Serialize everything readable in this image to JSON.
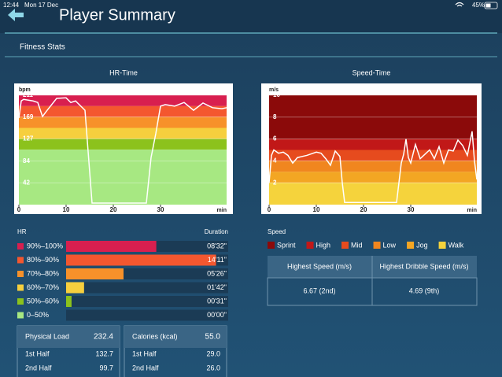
{
  "status_bar": {
    "time": "12:44",
    "date": "Mon 17 Dec",
    "battery": "45%"
  },
  "header": {
    "title": "Player Summary"
  },
  "section": "Fitness Stats",
  "hr_chart": {
    "type": "line",
    "title": "HR-Time",
    "y_unit": "bpm",
    "x_unit": "min",
    "color": "#ffffff",
    "x": [
      0,
      0.5,
      1,
      3,
      4,
      5,
      6,
      8,
      10,
      11,
      12,
      14,
      15.5,
      27,
      28,
      29,
      30,
      31,
      33,
      35,
      37,
      39,
      41,
      43,
      44
    ],
    "values": [
      167,
      200,
      203,
      200,
      197,
      170,
      182,
      205,
      206,
      197,
      200,
      182,
      3,
      3,
      91,
      137,
      190,
      193,
      190,
      197,
      182,
      196,
      187,
      185,
      187
    ],
    "xlim": [
      0,
      44
    ],
    "ylim": [
      0,
      211
    ],
    "xticks": [
      0,
      10,
      20,
      30
    ],
    "yticks": [
      42,
      84,
      127,
      169,
      211
    ],
    "bands": [
      {
        "from": 190,
        "to": 211,
        "color": "#d81f4f"
      },
      {
        "from": 169,
        "to": 190,
        "color": "#f4572f"
      },
      {
        "from": 148,
        "to": 169,
        "color": "#f7912a"
      },
      {
        "from": 127,
        "to": 148,
        "color": "#f6cf3e"
      },
      {
        "from": 106,
        "to": 127,
        "color": "#8cc21c"
      },
      {
        "from": 0,
        "to": 106,
        "color": "#a7e882"
      }
    ]
  },
  "speed_chart": {
    "type": "line",
    "title": "Speed-Time",
    "y_unit": "m/s",
    "x_unit": "min",
    "legend_title": "Speed",
    "color": "#ffffff",
    "x": [
      0,
      0.5,
      1,
      2,
      3,
      4,
      5,
      6,
      8,
      10,
      11,
      12,
      13,
      14,
      15,
      15.5,
      16,
      27,
      28,
      28.5,
      29,
      29.5,
      30,
      31,
      32,
      33,
      34,
      35,
      36,
      37,
      38,
      39,
      40,
      41,
      42,
      43,
      43.5,
      44
    ],
    "values": [
      2,
      4.5,
      5,
      4.7,
      4.8,
      4.5,
      3.8,
      4.3,
      4.5,
      4.8,
      4.7,
      4.2,
      3.6,
      4.9,
      4.4,
      2,
      0.2,
      0.2,
      3.8,
      4.6,
      6,
      4.3,
      3.8,
      5.5,
      4.2,
      4.6,
      5,
      4.2,
      5.3,
      3.8,
      5,
      4.9,
      5.9,
      5.4,
      4.5,
      6.7,
      4,
      2.3
    ],
    "xlim": [
      0,
      44
    ],
    "ylim": [
      0,
      10
    ],
    "xticks": [
      0,
      10,
      20,
      30
    ],
    "yticks": [
      2,
      4,
      6,
      8,
      10
    ],
    "bands": [
      {
        "name": "Sprint",
        "from": 6,
        "to": 10,
        "color": "#8b0a0a"
      },
      {
        "name": "High",
        "from": 5,
        "to": 6,
        "color": "#c11818"
      },
      {
        "name": "Mid",
        "from": 4,
        "to": 5,
        "color": "#e64b1e"
      },
      {
        "name": "Low",
        "from": 3,
        "to": 4,
        "color": "#f0861f"
      },
      {
        "name": "Jog",
        "from": 2,
        "to": 3,
        "color": "#f3a623"
      },
      {
        "name": "Walk",
        "from": 0,
        "to": 2,
        "color": "#f5d33c"
      }
    ]
  },
  "hr_zones": {
    "type": "bar",
    "title": "HR",
    "duration_label": "Duration",
    "xlim": [
      0,
      920
    ],
    "categories": [
      "90%–100%",
      "80%–90%",
      "70%–80%",
      "60%–70%",
      "50%–60%",
      "0–50%"
    ],
    "colors": [
      "#d81f4f",
      "#f4572f",
      "#f7912a",
      "#f6cf3e",
      "#8cc21c",
      "#a7e882"
    ],
    "values": [
      512,
      851,
      326,
      102,
      31,
      0
    ],
    "value_labels": [
      "08'32\"",
      "14'11\"",
      "05'26\"",
      "01'42\"",
      "00'31\"",
      "00'00\""
    ]
  },
  "speed_table": {
    "headers": [
      "Highest Speed (m/s)",
      "Highest Dribble Speed (m/s)"
    ],
    "rows": [
      [
        "6.67 (2nd)",
        "4.69 (9th)"
      ]
    ]
  },
  "load_boxes": [
    {
      "title": "Physical Load",
      "total": "232.4",
      "rows": [
        [
          "1st Half",
          "132.7"
        ],
        [
          "2nd Half",
          "99.7"
        ]
      ]
    },
    {
      "title": "Calories (kcal)",
      "total": "55.0",
      "rows": [
        [
          "1st Half",
          "29.0"
        ],
        [
          "2nd Half",
          "26.0"
        ]
      ]
    }
  ]
}
